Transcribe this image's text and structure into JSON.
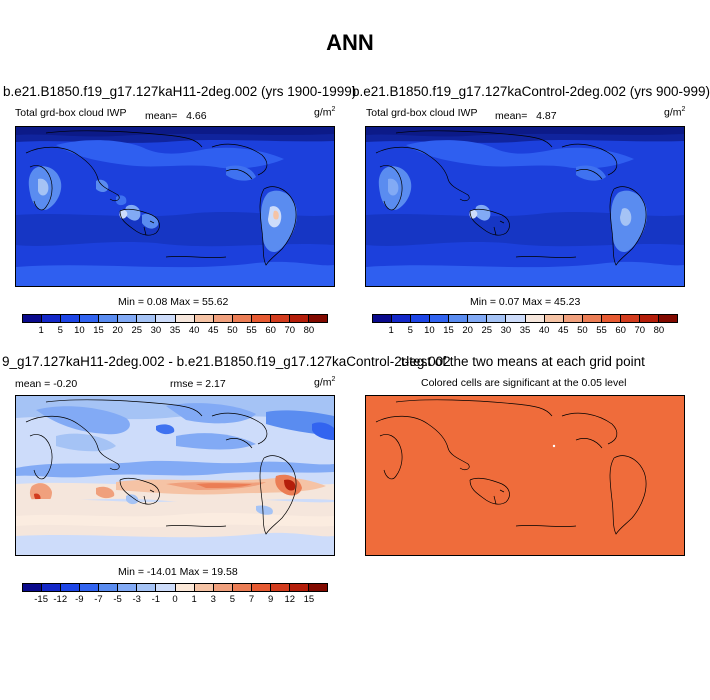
{
  "title": "ANN",
  "panels": [
    {
      "id": "top-left",
      "title": "b.e21.B1850.f19_g17.127kaH11-2deg.002 (yrs 1900-1999)",
      "left_label": "Total grd-box cloud IWP",
      "mean_label": "mean=",
      "mean_value": "4.66",
      "units": "g/m",
      "units_exp": "2",
      "minmax_text": "Min =  0.08 Max =  55.62"
    },
    {
      "id": "top-right",
      "title": "b.e21.B1850.f19_g17.127kaControl-2deg.002 (yrs 900-999)",
      "left_label": "Total grd-box cloud IWP",
      "mean_label": "mean=",
      "mean_value": "4.87",
      "units": "g/m",
      "units_exp": "2",
      "minmax_text": "Min =  0.07 Max =  45.23"
    },
    {
      "id": "bottom-left",
      "title": "9_g17.127kaH11-2deg.002 - b.e21.B1850.f19_g17.127kaControl-2deg.002",
      "mean_text": "mean =  -0.20",
      "rmse_text": "rmse =  2.17",
      "units": "g/m",
      "units_exp": "2",
      "minmax_text": "Min = -14.01 Max =  19.58"
    },
    {
      "id": "bottom-right",
      "title": "t-test of the two means at each grid point",
      "subtitle": "Colored cells are significant at the 0.05 level"
    }
  ],
  "colorbar_abs": {
    "labels": [
      "1",
      "5",
      "10",
      "15",
      "20",
      "25",
      "30",
      "35",
      "40",
      "45",
      "50",
      "55",
      "60",
      "70",
      "80"
    ],
    "colors": [
      "#0a0a8c",
      "#1428c8",
      "#1e46e6",
      "#3264f0",
      "#5a8cf0",
      "#82aaf5",
      "#a5c3f5",
      "#cddcfa",
      "#f5e6dc",
      "#f5c3a5",
      "#f0a07d",
      "#eb7d55",
      "#e65a32",
      "#d23c1e",
      "#b41e0a",
      "#820a00"
    ]
  },
  "colorbar_diff": {
    "labels": [
      "-15",
      "-12",
      "-9",
      "-7",
      "-5",
      "-3",
      "-1",
      "0",
      "1",
      "3",
      "5",
      "7",
      "9",
      "12",
      "15"
    ],
    "colors": [
      "#0a0a8c",
      "#1428c8",
      "#1e46e6",
      "#3264f0",
      "#5a8cf0",
      "#82aaf5",
      "#a5c3f5",
      "#cddcfa",
      "#fbe8d8",
      "#f5c3a5",
      "#f0a07d",
      "#eb7d55",
      "#e65a32",
      "#d23c1e",
      "#b41e0a",
      "#820a00"
    ]
  },
  "ttest_color": "#ef6c3b"
}
